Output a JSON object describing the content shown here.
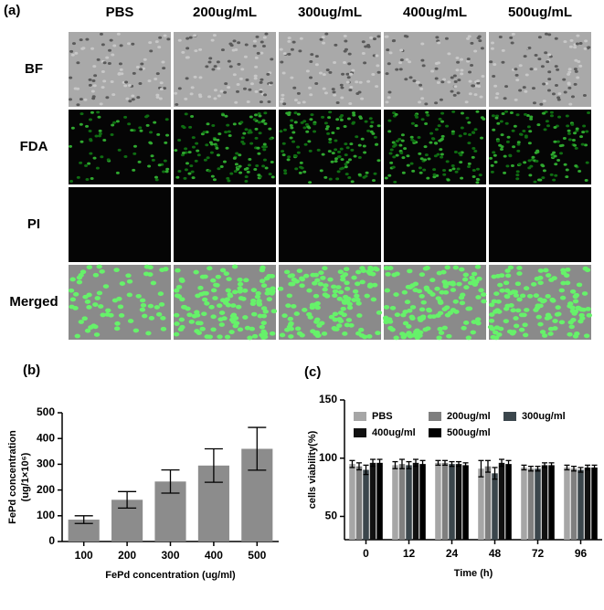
{
  "figure": {
    "panel_labels": [
      "(a)",
      "(b)",
      "(c)"
    ],
    "columns": [
      "PBS",
      "200ug/mL",
      "300ug/mL",
      "400ug/mL",
      "500ug/mL"
    ],
    "rows": [
      "BF",
      "FDA",
      "PI",
      "Merged"
    ]
  },
  "chart_data": [
    {
      "type": "bar",
      "categories": [
        "100",
        "200",
        "300",
        "400",
        "500"
      ],
      "values": [
        85,
        162,
        233,
        295,
        360
      ],
      "errors": [
        15,
        32,
        45,
        65,
        83
      ],
      "color": "#8c8c8c",
      "ylim": [
        0,
        500
      ],
      "yticks": [
        0,
        100,
        200,
        300,
        400,
        500
      ],
      "xlabel": "FePd concentration (ug/ml)",
      "ylabel": [
        "FePd concentration",
        "(ug/1×10⁶)"
      ]
    },
    {
      "type": "grouped_bar",
      "categories": [
        "0",
        "12",
        "24",
        "48",
        "72",
        "96"
      ],
      "series": [
        {
          "name": "PBS",
          "color": "#a6a6a6",
          "values": [
            95,
            94,
            96,
            91,
            92,
            92
          ],
          "errors": [
            3,
            3,
            2,
            7,
            2,
            2
          ]
        },
        {
          "name": "200ug/ml",
          "color": "#7f7f7f",
          "values": [
            93,
            95,
            96,
            93,
            91,
            91
          ],
          "errors": [
            3,
            4,
            2,
            5,
            2,
            2
          ]
        },
        {
          "name": "300ug/ml",
          "color": "#3b464c",
          "values": [
            90,
            94,
            95,
            87,
            91,
            90
          ],
          "errors": [
            4,
            3,
            2,
            5,
            2,
            2
          ]
        },
        {
          "name": "400ug/ml",
          "color": "#111111",
          "values": [
            96,
            96,
            95,
            96,
            94,
            92
          ],
          "errors": [
            3,
            3,
            2,
            3,
            2,
            2
          ]
        },
        {
          "name": "500ug/ml",
          "color": "#000000",
          "values": [
            96,
            95,
            94,
            95,
            94,
            92
          ],
          "errors": [
            3,
            3,
            2,
            3,
            2,
            2
          ]
        }
      ],
      "ylim": [
        30,
        150
      ],
      "yticks": [
        50,
        100,
        150
      ],
      "xlabel": "Time (h)",
      "ylabel": "cells viability(%)",
      "legend": "top"
    }
  ]
}
